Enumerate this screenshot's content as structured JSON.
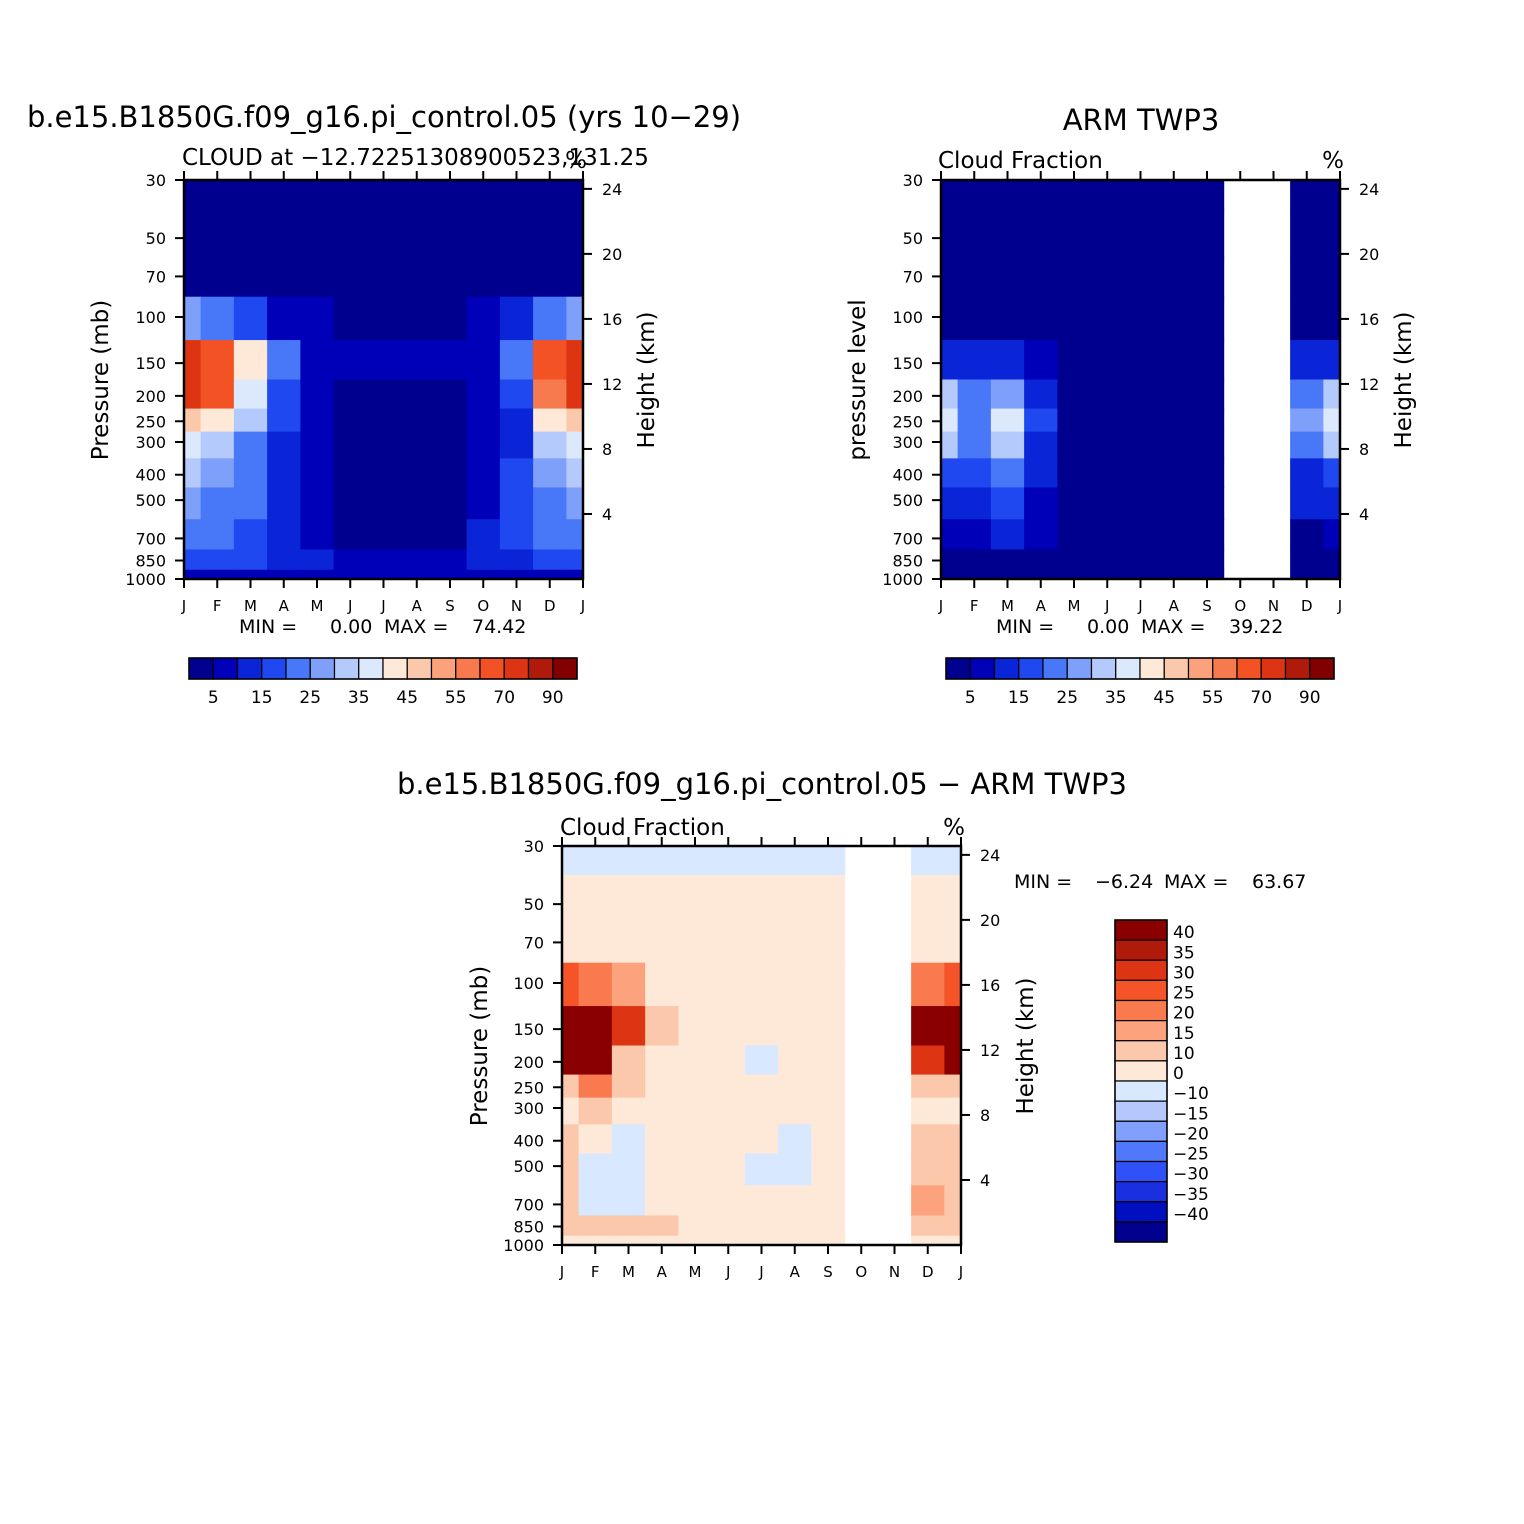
{
  "colors": {
    "seq": [
      "#00008f",
      "#0000b8",
      "#0a25d8",
      "#1f48f0",
      "#4878f8",
      "#7ea0fa",
      "#b4cafc",
      "#dce9fd",
      "#fee9d8",
      "#fcc8ab",
      "#fba27c",
      "#f77a4e",
      "#f25224",
      "#dd3513",
      "#b01a0a",
      "#820000"
    ],
    "diff": [
      "#00008f",
      "#0010c0",
      "#1a30e0",
      "#3050f8",
      "#5078fa",
      "#80a0fc",
      "#b4c8fe",
      "#d8e8fe",
      "#fee9d8",
      "#fcc8ab",
      "#fca27c",
      "#f87a4e",
      "#f45428",
      "#dd3513",
      "#b01a0a",
      "#8a0000"
    ]
  },
  "months": [
    "J",
    "F",
    "M",
    "A",
    "M",
    "J",
    "J",
    "A",
    "S",
    "O",
    "N",
    "D",
    "J"
  ],
  "pressure_ticks": [
    "30",
    "50",
    "70",
    "100",
    "150",
    "200",
    "250",
    "300",
    "400",
    "500",
    "700",
    "850",
    "1000"
  ],
  "height_ticks": [
    "24",
    "20",
    "16",
    "12",
    "8",
    "4"
  ],
  "chart_data": [
    {
      "type": "heatmap",
      "id": "model",
      "title": "b.e15.B1850G.f09_g16.pi_control.05 (yrs 10−29)",
      "subtitle": "CLOUD at −12.72251308900523,131.25",
      "units": "%",
      "ylabel": "Pressure (mb)",
      "y2label": "Height (km)",
      "stats": {
        "min_label": "MIN =",
        "min": "0.00",
        "max_label": "MAX =",
        "max": "74.42"
      },
      "levels": [
        "5",
        "15",
        "25",
        "35",
        "45",
        "55",
        "70",
        "90"
      ],
      "ylim": [
        1000,
        30
      ],
      "x": [
        "J",
        "F",
        "M",
        "A",
        "M",
        "J",
        "J",
        "A",
        "S",
        "O",
        "N",
        "D",
        "J"
      ],
      "y_pressure": [
        30,
        50,
        70,
        100,
        150,
        200,
        250,
        300,
        400,
        500,
        700,
        850,
        1000
      ],
      "values": [
        [
          0,
          0,
          0,
          0,
          0,
          0,
          0,
          0,
          0,
          0,
          0,
          0,
          0
        ],
        [
          1,
          1,
          0,
          0,
          0,
          0,
          0,
          0,
          0,
          0,
          0,
          1,
          1
        ],
        [
          3,
          3,
          2,
          1,
          1,
          1,
          0,
          0,
          0,
          1,
          2,
          3,
          3
        ],
        [
          28,
          24,
          18,
          8,
          5,
          3,
          3,
          3,
          4,
          6,
          12,
          24,
          28
        ],
        [
          72,
          66,
          42,
          20,
          8,
          5,
          6,
          6,
          7,
          8,
          22,
          62,
          72
        ],
        [
          70,
          62,
          38,
          18,
          6,
          2,
          1,
          1,
          2,
          6,
          16,
          56,
          70
        ],
        [
          48,
          44,
          30,
          16,
          5,
          1,
          0,
          0,
          1,
          5,
          14,
          42,
          48
        ],
        [
          36,
          32,
          24,
          14,
          5,
          1,
          0,
          0,
          1,
          5,
          14,
          32,
          36
        ],
        [
          30,
          28,
          22,
          14,
          6,
          1,
          0,
          0,
          1,
          6,
          16,
          28,
          30
        ],
        [
          26,
          24,
          20,
          14,
          6,
          2,
          0,
          0,
          2,
          8,
          18,
          24,
          26
        ],
        [
          20,
          20,
          18,
          12,
          8,
          4,
          2,
          2,
          4,
          10,
          16,
          20,
          20
        ],
        [
          16,
          16,
          16,
          14,
          10,
          8,
          6,
          6,
          8,
          10,
          14,
          16,
          16
        ],
        [
          6,
          6,
          6,
          6,
          6,
          6,
          6,
          6,
          6,
          6,
          6,
          6,
          6
        ]
      ]
    },
    {
      "type": "heatmap",
      "id": "obs",
      "title": "ARM TWP3",
      "subtitle": "Cloud Fraction",
      "units": "%",
      "ylabel": "pressure level",
      "y2label": "Height (km)",
      "stats": {
        "min_label": "MIN =",
        "min": "0.00",
        "max_label": "MAX =",
        "max": "39.22"
      },
      "levels": [
        "5",
        "15",
        "25",
        "35",
        "45",
        "55",
        "70",
        "90"
      ],
      "ylim": [
        1000,
        30
      ],
      "x": [
        "J",
        "F",
        "M",
        "A",
        "M",
        "J",
        "J",
        "A",
        "S",
        "O",
        "N",
        "D",
        "J"
      ],
      "missing_x_range": [
        "S",
        "N"
      ],
      "y_pressure": [
        30,
        50,
        70,
        100,
        150,
        200,
        250,
        300,
        400,
        500,
        700,
        850,
        1000
      ],
      "values": [
        [
          0,
          0,
          0,
          0,
          0,
          0,
          0,
          0,
          0,
          null,
          null,
          0,
          0
        ],
        [
          0,
          0,
          0,
          0,
          0,
          0,
          0,
          0,
          0,
          null,
          null,
          0,
          0
        ],
        [
          0,
          0,
          0,
          0,
          0,
          0,
          0,
          0,
          0,
          null,
          null,
          0,
          0
        ],
        [
          2,
          1,
          1,
          1,
          0,
          0,
          0,
          0,
          0,
          null,
          null,
          1,
          2
        ],
        [
          14,
          10,
          12,
          8,
          2,
          0,
          0,
          0,
          0,
          null,
          null,
          10,
          14
        ],
        [
          30,
          20,
          26,
          14,
          4,
          0,
          0,
          0,
          0,
          null,
          null,
          22,
          30
        ],
        [
          36,
          22,
          36,
          16,
          4,
          0,
          0,
          0,
          0,
          null,
          null,
          28,
          36
        ],
        [
          30,
          20,
          30,
          14,
          4,
          0,
          0,
          0,
          0,
          null,
          null,
          24,
          30
        ],
        [
          18,
          16,
          24,
          12,
          3,
          0,
          0,
          0,
          0,
          null,
          null,
          14,
          18
        ],
        [
          12,
          10,
          16,
          8,
          2,
          0,
          0,
          0,
          0,
          null,
          null,
          10,
          12
        ],
        [
          6,
          8,
          10,
          6,
          2,
          1,
          0,
          0,
          0,
          null,
          null,
          4,
          6
        ],
        [
          4,
          4,
          4,
          3,
          3,
          2,
          0,
          0,
          0,
          null,
          null,
          3,
          4
        ],
        [
          2,
          2,
          2,
          2,
          2,
          1,
          0,
          0,
          0,
          null,
          null,
          2,
          2
        ]
      ]
    },
    {
      "type": "heatmap",
      "id": "diff",
      "title": "b.e15.B1850G.f09_g16.pi_control.05 − ARM TWP3",
      "subtitle": "Cloud Fraction",
      "units": "%",
      "ylabel": "Pressure (mb)",
      "y2label": "Height (km)",
      "stats": {
        "min_label": "MIN =",
        "min": "−6.24",
        "max_label": "MAX =",
        "max": "63.67"
      },
      "levels": [
        "40",
        "35",
        "30",
        "25",
        "20",
        "15",
        "10",
        "0",
        "−10",
        "−15",
        "−20",
        "−25",
        "−30",
        "−35",
        "−40"
      ],
      "ylim": [
        1000,
        30
      ],
      "x": [
        "J",
        "F",
        "M",
        "A",
        "M",
        "J",
        "J",
        "A",
        "S",
        "O",
        "N",
        "D",
        "J"
      ],
      "missing_x_range": [
        "S",
        "N"
      ],
      "y_pressure": [
        30,
        50,
        70,
        100,
        150,
        200,
        250,
        300,
        400,
        500,
        700,
        850,
        1000
      ],
      "values": [
        [
          -2,
          -2,
          -2,
          -2,
          -2,
          -2,
          -2,
          -2,
          -2,
          null,
          null,
          -2,
          -2
        ],
        [
          2,
          2,
          2,
          2,
          2,
          2,
          2,
          2,
          2,
          null,
          null,
          2,
          2
        ],
        [
          3,
          3,
          2,
          1,
          1,
          1,
          0,
          0,
          0,
          null,
          null,
          2,
          3
        ],
        [
          26,
          23,
          17,
          7,
          5,
          3,
          3,
          3,
          4,
          null,
          null,
          23,
          26
        ],
        [
          58,
          56,
          30,
          12,
          6,
          5,
          6,
          6,
          7,
          null,
          null,
          52,
          58
        ],
        [
          40,
          42,
          12,
          4,
          2,
          2,
          -1,
          1,
          2,
          null,
          null,
          34,
          40
        ],
        [
          12,
          22,
          10,
          4,
          2,
          1,
          0,
          0,
          1,
          null,
          null,
          14,
          12
        ],
        [
          6,
          12,
          8,
          2,
          1,
          1,
          0,
          0,
          1,
          null,
          null,
          8,
          6
        ],
        [
          12,
          2,
          -2,
          2,
          3,
          1,
          0,
          -1,
          1,
          null,
          null,
          14,
          12
        ],
        [
          14,
          -1,
          -1,
          4,
          4,
          2,
          -1,
          -1,
          2,
          null,
          null,
          14,
          14
        ],
        [
          14,
          -1,
          -1,
          6,
          6,
          3,
          2,
          2,
          4,
          null,
          null,
          16,
          14
        ],
        [
          12,
          12,
          12,
          11,
          7,
          6,
          6,
          6,
          8,
          null,
          null,
          13,
          12
        ],
        [
          4,
          4,
          4,
          4,
          4,
          5,
          6,
          6,
          6,
          null,
          null,
          4,
          4
        ]
      ]
    }
  ]
}
